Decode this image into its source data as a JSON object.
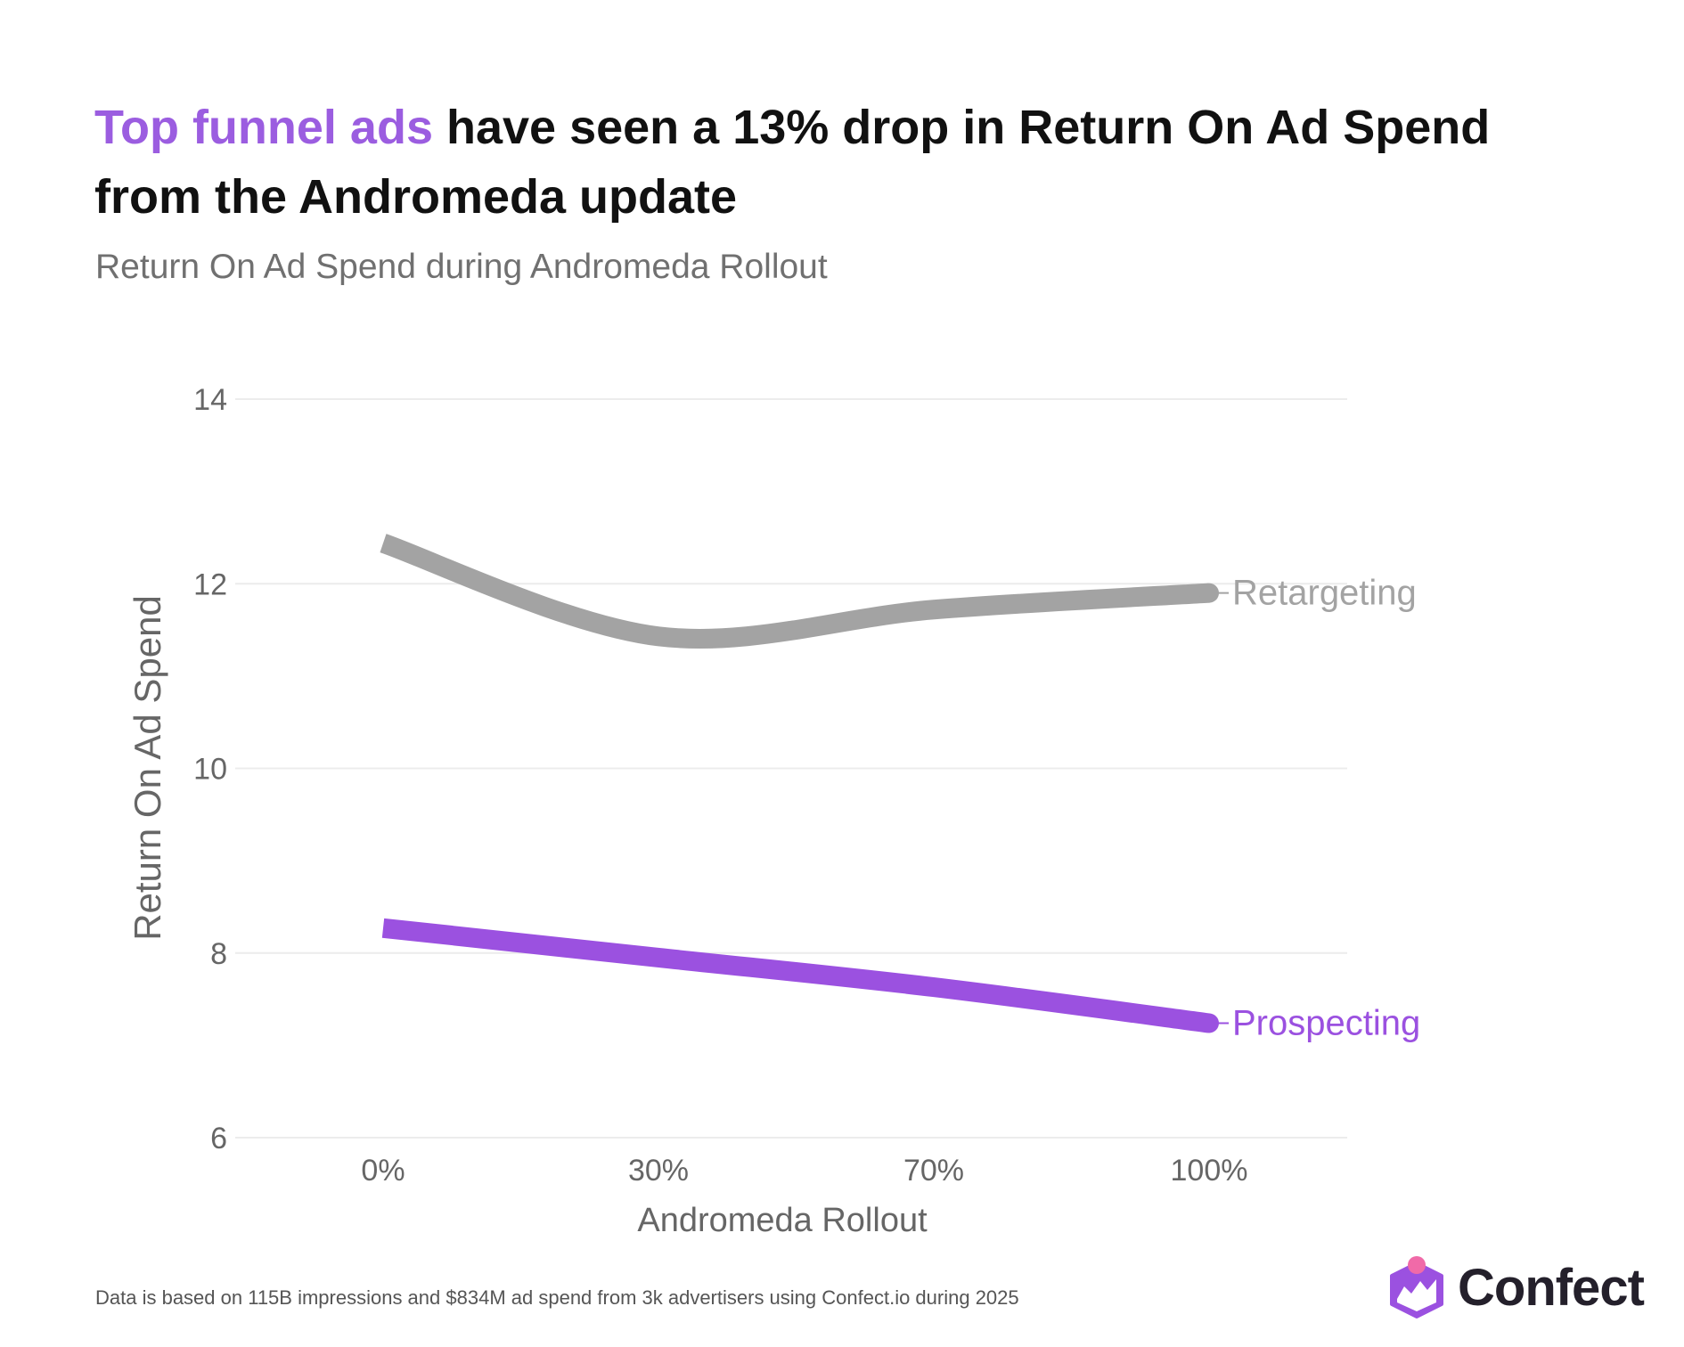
{
  "header": {
    "title_highlight": "Top funnel ads",
    "title_rest": " have seen a 13% drop in Return On Ad Spend from the Andromeda update",
    "subtitle": "Return On Ad Spend during Andromeda Rollout"
  },
  "footer": {
    "note": "Data is based on 115B impressions and $834M ad spend from 3k advertisers using Confect.io during 2025"
  },
  "logo": {
    "text": "Confect"
  },
  "colors": {
    "accent": "#9b51e0",
    "retargeting": "#a3a3a3",
    "grid": "#ececec",
    "axis_text": "#666666"
  },
  "chart_data": {
    "type": "line",
    "xlabel": "Andromeda Rollout",
    "ylabel": "Return On Ad Spend",
    "categories": [
      "0%",
      "30%",
      "70%",
      "100%"
    ],
    "ylim": [
      6,
      14
    ],
    "yticks": [
      6,
      8,
      10,
      12,
      14
    ],
    "grid": true,
    "legend": "direct labels at line ends",
    "series": [
      {
        "name": "Retargeting",
        "color": "#a3a3a3",
        "values": [
          12.44,
          11.43,
          11.72,
          11.9
        ]
      },
      {
        "name": "Prospecting",
        "color": "#9b51e0",
        "values": [
          8.27,
          7.95,
          7.63,
          7.24
        ]
      }
    ]
  }
}
